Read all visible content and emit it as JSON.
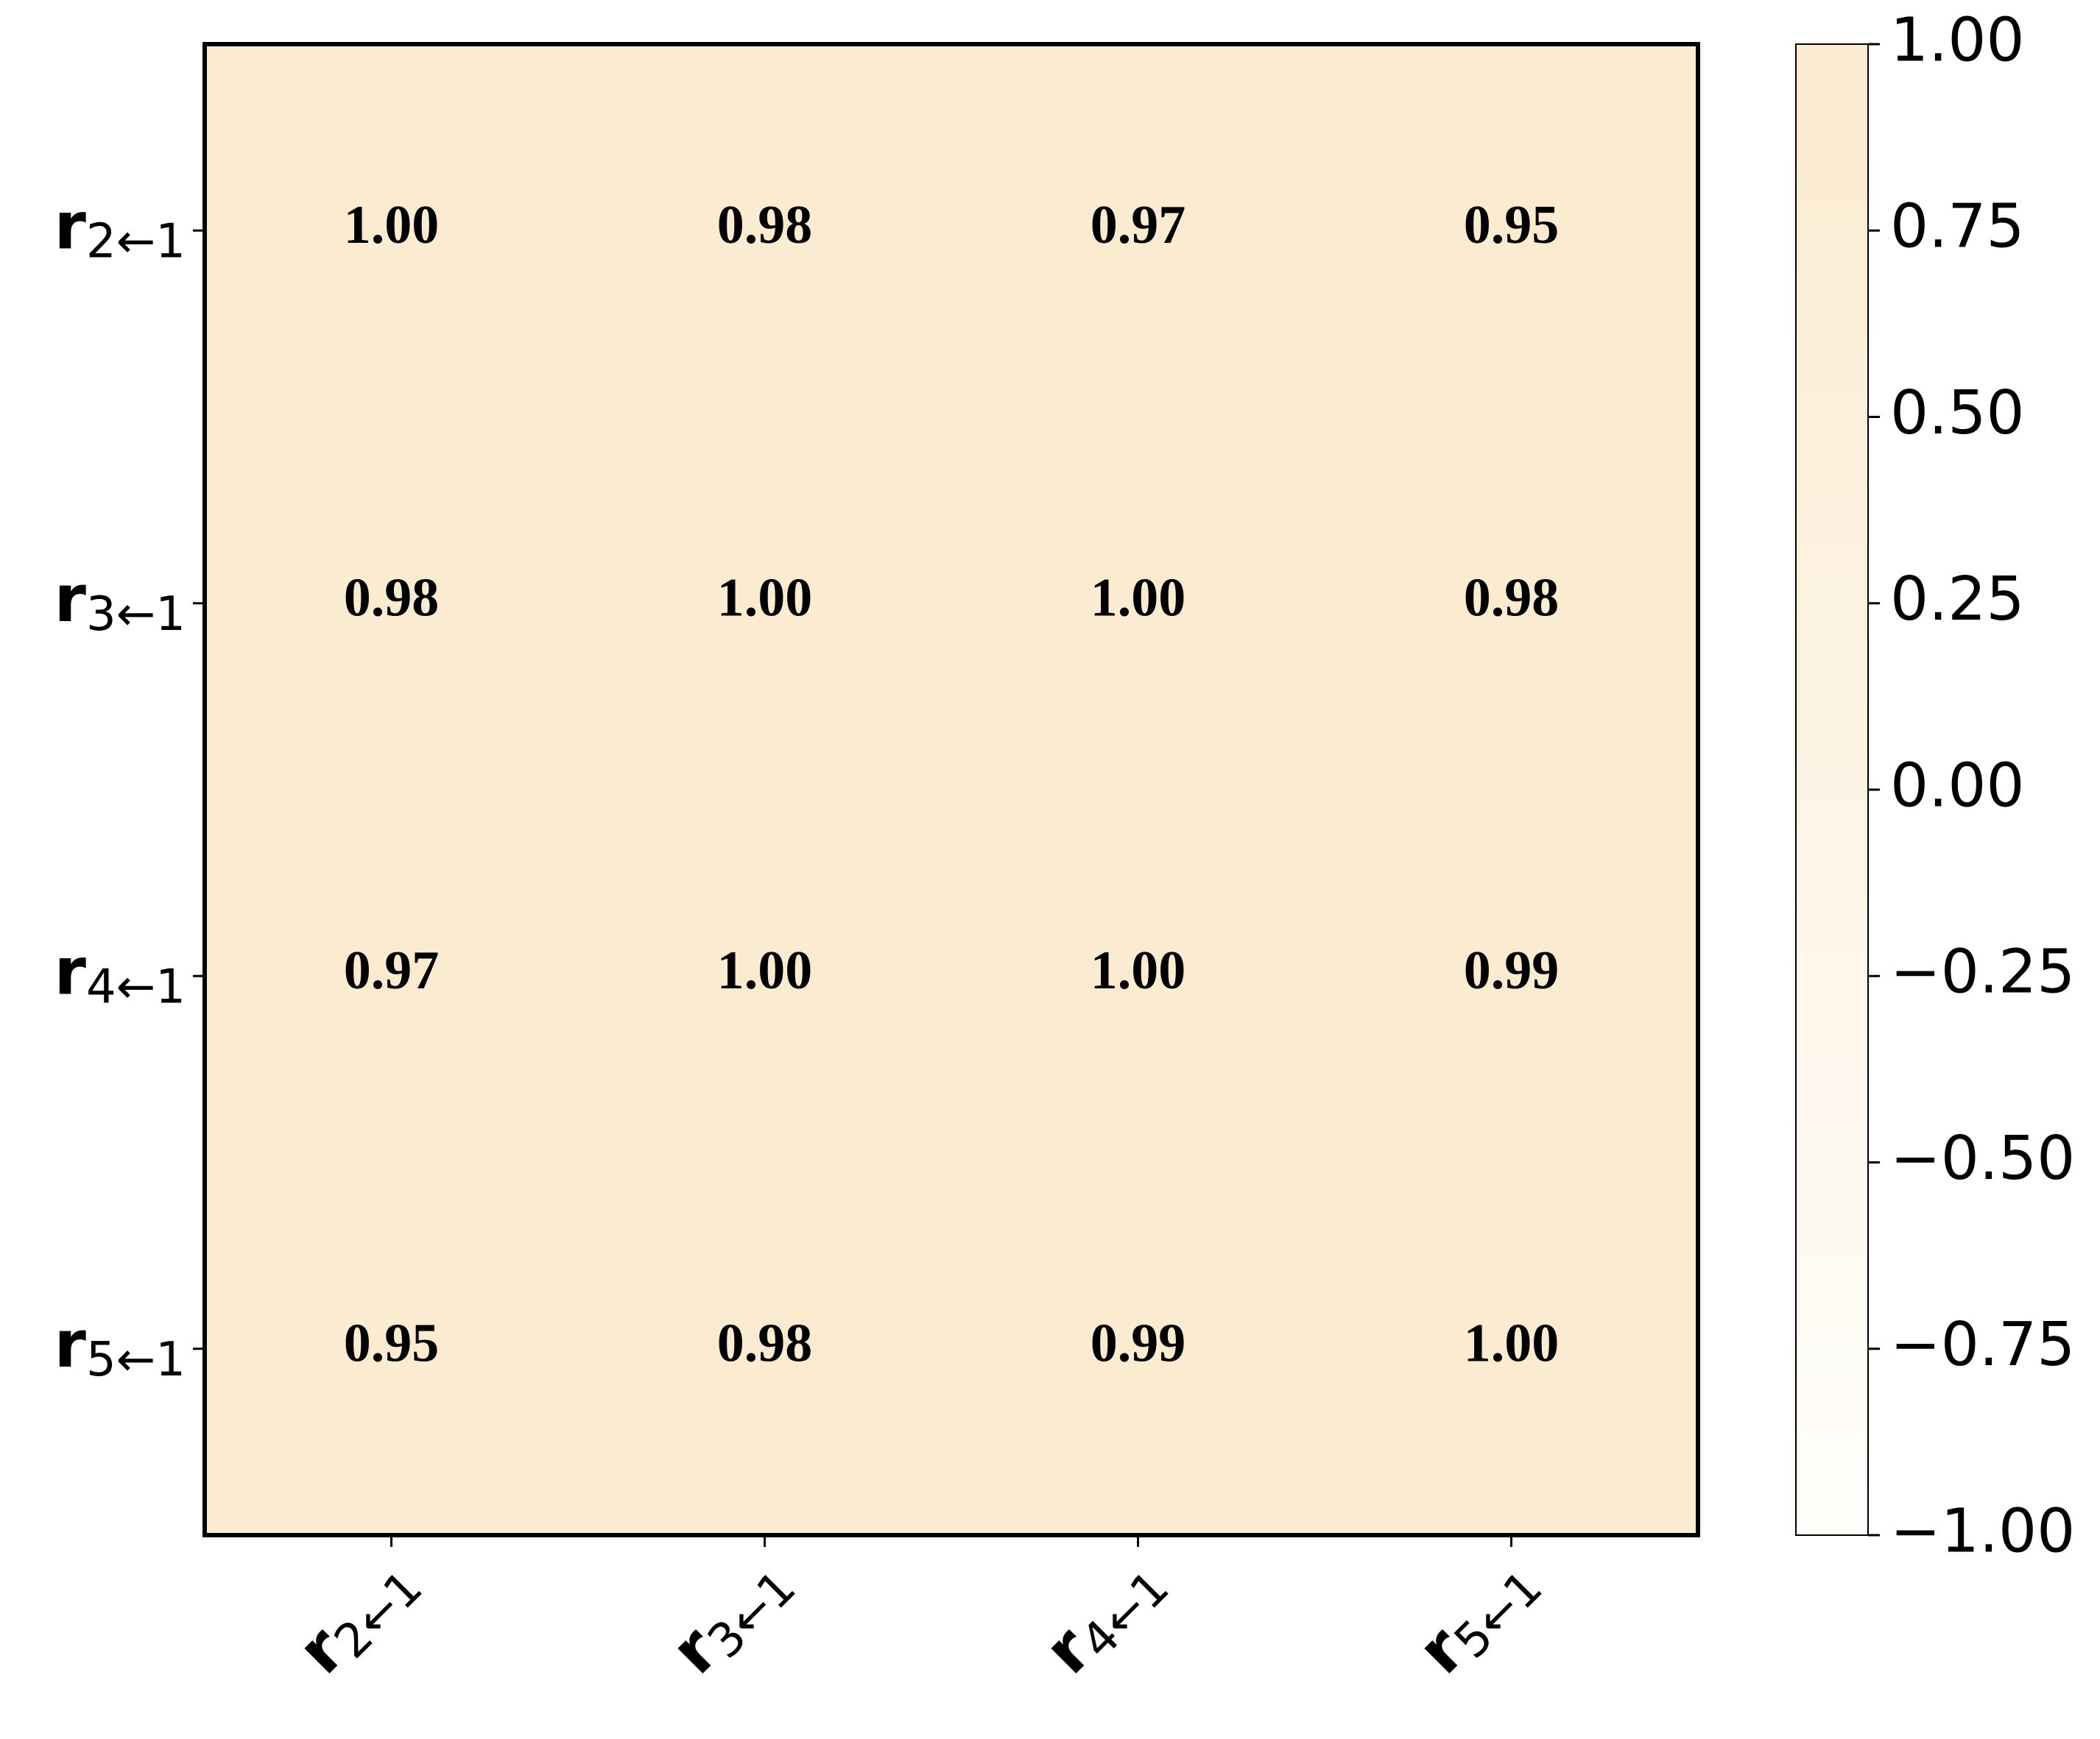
{
  "chart_data": {
    "type": "heatmap",
    "x_categories": [
      {
        "symbol": "r",
        "subscript": "2←1"
      },
      {
        "symbol": "r",
        "subscript": "3←1"
      },
      {
        "symbol": "r",
        "subscript": "4←1"
      },
      {
        "symbol": "r",
        "subscript": "5←1"
      }
    ],
    "y_categories": [
      {
        "symbol": "r",
        "subscript": "2←1"
      },
      {
        "symbol": "r",
        "subscript": "3←1"
      },
      {
        "symbol": "r",
        "subscript": "4←1"
      },
      {
        "symbol": "r",
        "subscript": "5←1"
      }
    ],
    "values": [
      [
        1,
        0.98,
        0.97,
        0.95
      ],
      [
        0.98,
        1,
        1,
        0.98
      ],
      [
        0.97,
        1,
        1,
        0.99
      ],
      [
        0.95,
        0.98,
        0.99,
        1
      ]
    ],
    "value_labels": [
      [
        "1.00",
        "0.98",
        "0.97",
        "0.95"
      ],
      [
        "0.98",
        "1.00",
        "1.00",
        "0.98"
      ],
      [
        "0.97",
        "1.00",
        "1.00",
        "0.99"
      ],
      [
        "0.95",
        "0.98",
        "0.99",
        "1.00"
      ]
    ],
    "colormap": [
      "#fffefb",
      "#fbebd0"
    ],
    "clim": [
      -1,
      1
    ],
    "cticks": [
      {
        "value": 1,
        "label": "1.00"
      },
      {
        "value": 0.75,
        "label": "0.75"
      },
      {
        "value": 0.5,
        "label": "0.50"
      },
      {
        "value": 0.25,
        "label": "0.25"
      },
      {
        "value": 0,
        "label": "0.00"
      },
      {
        "value": -0.25,
        "label": "−0.25"
      },
      {
        "value": -0.5,
        "label": "−0.50"
      },
      {
        "value": -0.75,
        "label": "−0.75"
      },
      {
        "value": -1,
        "label": "−1.00"
      }
    ]
  }
}
